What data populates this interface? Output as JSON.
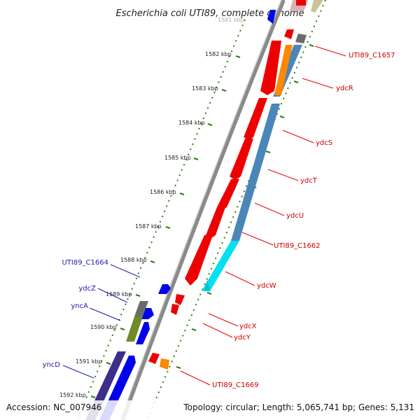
{
  "title": "Escherichia coli UTI89, complete genome",
  "footer": {
    "accession": "Accession: NC_007946",
    "summary": "Topology: circular; Length: 5,065,741 bp; Genes: 5,131"
  },
  "colors": {
    "backbone": "#8a8a8a",
    "tick": "#2a7d12",
    "forward_gene": "#ee0000",
    "reverse_gene": "#0000ee",
    "steelblue_track": "#4a86b8",
    "cyan_track": "#00e0f0",
    "orange": "#ff8800",
    "gray": "#6b6b6b",
    "olive": "#6e8a2a",
    "navy": "#3b2f8a",
    "red_label": "#cc0000",
    "blue_label": "#1a1ab0"
  },
  "kbp_labels": [
    "1581 kbp",
    "1582 kbp",
    "1583 kbp",
    "1584 kbp",
    "1585 kbp",
    "1586 kbp",
    "1587 kbp",
    "1588 kbp",
    "1589 kbp",
    "1590 kbp",
    "1591 kbp",
    "1592 kbp"
  ],
  "genes_right": [
    {
      "id": "c1657",
      "label": "UTI89_C1657"
    },
    {
      "id": "ydcR",
      "label": "ydcR"
    },
    {
      "id": "ydcS",
      "label": "ydcS"
    },
    {
      "id": "ydcT",
      "label": "ydcT"
    },
    {
      "id": "ydcU",
      "label": "ydcU"
    },
    {
      "id": "c1662",
      "label": "UTI89_C1662"
    },
    {
      "id": "ydcW",
      "label": "ydcW"
    },
    {
      "id": "ydcX",
      "label": "ydcX"
    },
    {
      "id": "ydcY",
      "label": "ydcY"
    },
    {
      "id": "c1669",
      "label": "UTI89_C1669"
    }
  ],
  "genes_left": [
    {
      "id": "c1664",
      "label": "UTI89_C1664"
    },
    {
      "id": "ydcZ",
      "label": "ydcZ"
    },
    {
      "id": "yncA",
      "label": "yncA"
    },
    {
      "id": "yncD",
      "label": "yncD"
    }
  ]
}
